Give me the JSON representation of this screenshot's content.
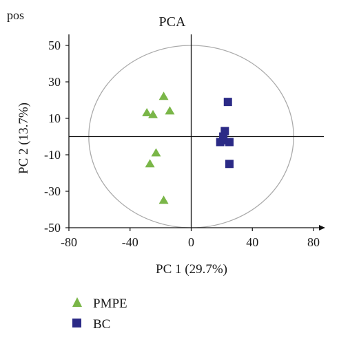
{
  "chart_data": {
    "type": "scatter",
    "corner_label": "pos",
    "title": "PCA",
    "xlabel": "PC 1 (29.7%)",
    "ylabel": "PC 2 (13.7%)",
    "xlim": [
      -80,
      80
    ],
    "ylim": [
      -50,
      60
    ],
    "xticks": [
      -80,
      -40,
      0,
      40,
      80
    ],
    "yticks": [
      -50,
      -30,
      -10,
      10,
      30,
      50
    ],
    "xtick_labels": [
      "-80",
      "-40",
      "0",
      "40",
      "80"
    ],
    "ytick_labels": [
      "-50",
      "-30",
      "-10",
      "10",
      "30",
      "50"
    ],
    "ellipse": {
      "cx": 0,
      "cy": 0,
      "rx": 67,
      "ry": 50,
      "color": "#aaaaaa"
    },
    "legend_position": "bottom-left",
    "series": [
      {
        "name": "PMPE",
        "marker": "triangle",
        "color": "#7ab648",
        "points": [
          {
            "x": -18,
            "y": 22
          },
          {
            "x": -29,
            "y": 13
          },
          {
            "x": -25,
            "y": 12
          },
          {
            "x": -14,
            "y": 14
          },
          {
            "x": -23,
            "y": -9
          },
          {
            "x": -27,
            "y": -15
          },
          {
            "x": -18,
            "y": -35
          }
        ]
      },
      {
        "name": "BC",
        "marker": "square",
        "color": "#2b2a86",
        "points": [
          {
            "x": 24,
            "y": 19
          },
          {
            "x": 22,
            "y": 3
          },
          {
            "x": 21,
            "y": 0
          },
          {
            "x": 19,
            "y": -3
          },
          {
            "x": 21,
            "y": -2
          },
          {
            "x": 25,
            "y": -3
          },
          {
            "x": 25,
            "y": -15
          }
        ]
      }
    ]
  }
}
